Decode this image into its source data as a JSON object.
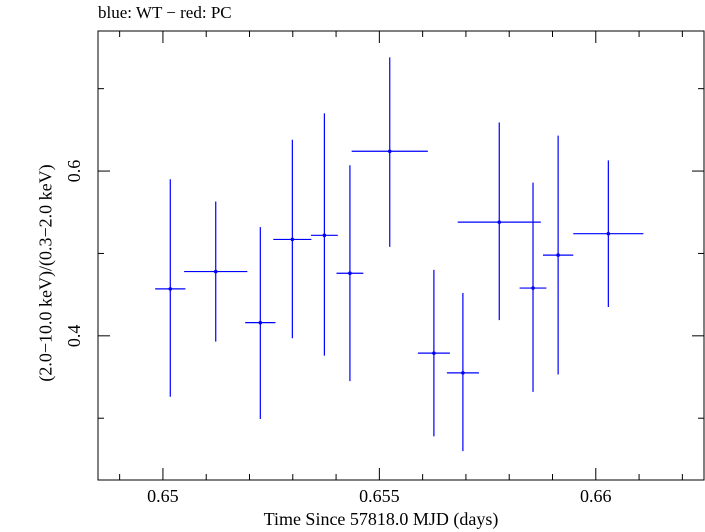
{
  "chart_data": {
    "type": "scatter",
    "title": "blue: WT − red: PC",
    "xlabel": "Time Since 57818.0 MJD (days)",
    "ylabel": "(2.0−10.0 keV)/(0.3−2.0 keV)",
    "xlim": [
      0.6485,
      0.6625
    ],
    "ylim": [
      0.225,
      0.77
    ],
    "x_ticks": [
      "0.65",
      "0.655",
      "0.66"
    ],
    "y_ticks": [
      "0.4",
      "0.6"
    ],
    "grid": false,
    "series": [
      {
        "color": "#0000ff",
        "points": [
          {
            "x": 0.65017,
            "y": 0.457,
            "xerr": 0.00035,
            "yerr_low": 0.131,
            "yerr_high": 0.133
          },
          {
            "x": 0.65122,
            "y": 0.478,
            "xerr": 0.00073,
            "yerr_low": 0.085,
            "yerr_high": 0.085
          },
          {
            "x": 0.65225,
            "y": 0.416,
            "xerr": 0.00035,
            "yerr_low": 0.117,
            "yerr_high": 0.116
          },
          {
            "x": 0.65299,
            "y": 0.517,
            "xerr": 0.00044,
            "yerr_low": 0.12,
            "yerr_high": 0.121
          },
          {
            "x": 0.65373,
            "y": 0.522,
            "xerr": 0.00031,
            "yerr_low": 0.146,
            "yerr_high": 0.148
          },
          {
            "x": 0.65432,
            "y": 0.476,
            "xerr": 0.00031,
            "yerr_low": 0.131,
            "yerr_high": 0.131
          },
          {
            "x": 0.65524,
            "y": 0.624,
            "xerr": 0.00088,
            "yerr_low": 0.116,
            "yerr_high": 0.114
          },
          {
            "x": 0.65626,
            "y": 0.379,
            "xerr": 0.00037,
            "yerr_low": 0.101,
            "yerr_high": 0.101
          },
          {
            "x": 0.65693,
            "y": 0.355,
            "xerr": 0.00037,
            "yerr_low": 0.095,
            "yerr_high": 0.097
          },
          {
            "x": 0.65777,
            "y": 0.538,
            "xerr": 0.00096,
            "yerr_low": 0.119,
            "yerr_high": 0.121
          },
          {
            "x": 0.65855,
            "y": 0.458,
            "xerr": 0.00031,
            "yerr_low": 0.126,
            "yerr_high": 0.128
          },
          {
            "x": 0.65913,
            "y": 0.498,
            "xerr": 0.00035,
            "yerr_low": 0.145,
            "yerr_high": 0.145
          },
          {
            "x": 0.66029,
            "y": 0.524,
            "xerr": 0.00081,
            "yerr_low": 0.089,
            "yerr_high": 0.089
          }
        ]
      }
    ]
  }
}
